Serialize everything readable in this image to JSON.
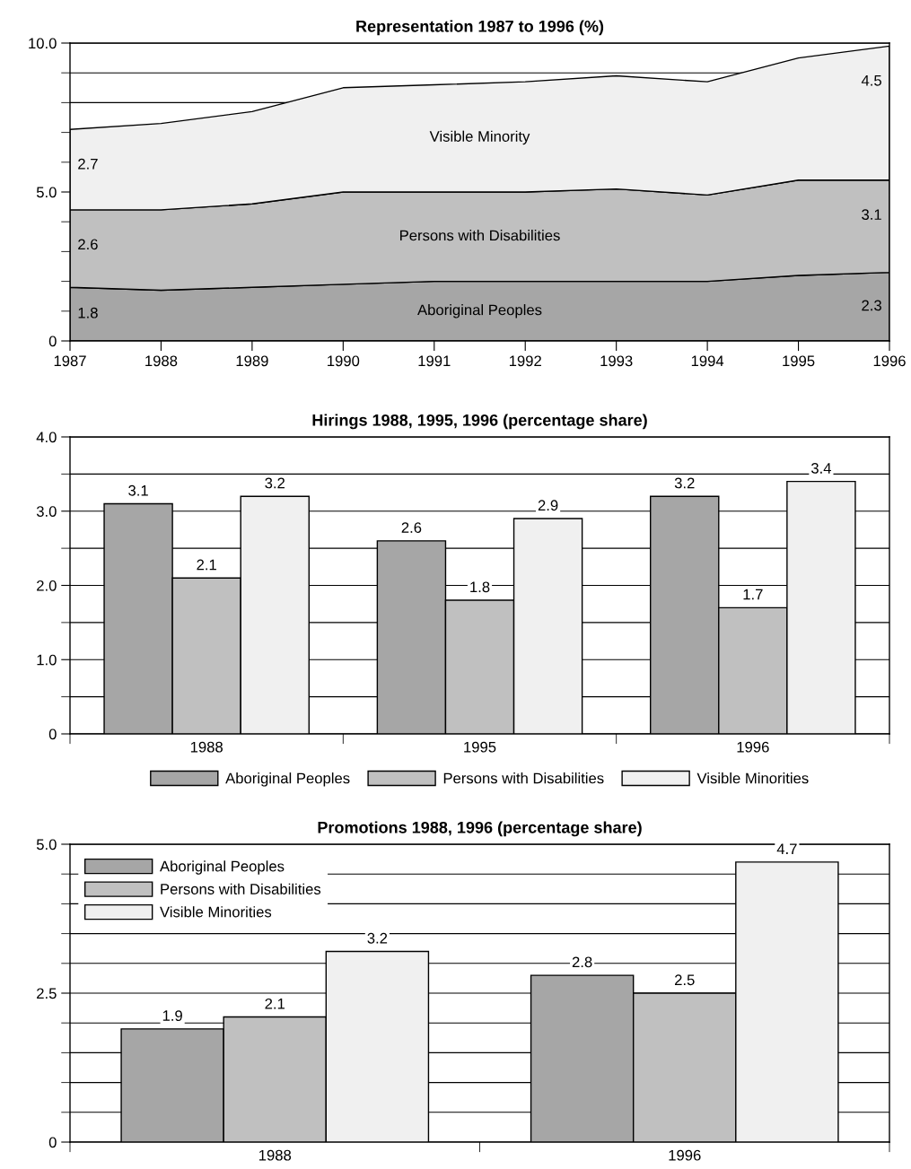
{
  "chart_data": [
    {
      "type": "area",
      "stacked": true,
      "title": "Representation 1987 to 1996 (%)",
      "x": [
        1987,
        1988,
        1989,
        1990,
        1991,
        1992,
        1993,
        1994,
        1995,
        1996
      ],
      "xlim": [
        1987,
        1996
      ],
      "xticks": [
        1987,
        1988,
        1989,
        1990,
        1991,
        1992,
        1993,
        1994,
        1995,
        1996
      ],
      "ylim": [
        0,
        10
      ],
      "yticks": [
        0,
        {
          "value": 1,
          "label": null
        },
        {
          "value": 2,
          "label": null
        },
        {
          "value": 3,
          "label": null
        },
        {
          "value": 4,
          "label": null
        },
        {
          "value": 5,
          "label": "5.0"
        },
        {
          "value": 6,
          "label": null
        },
        {
          "value": 7,
          "label": null
        },
        {
          "value": 8,
          "label": null
        },
        {
          "value": 9,
          "label": null
        },
        {
          "value": 10,
          "label": "10.0"
        }
      ],
      "grid": "y",
      "series": [
        {
          "name": "Aboriginal Peoples",
          "color": "#a6a6a6",
          "values": [
            1.8,
            1.7,
            1.8,
            1.9,
            2.0,
            2.0,
            2.0,
            2.0,
            2.2,
            2.3
          ],
          "value_labels": [
            "1.8",
            null,
            null,
            null,
            null,
            null,
            null,
            null,
            null,
            "2.3"
          ]
        },
        {
          "name": "Persons with Disabilities",
          "color": "#c0c0c0",
          "values": [
            2.6,
            2.7,
            2.8,
            3.1,
            3.0,
            3.0,
            3.1,
            2.9,
            3.2,
            3.1
          ],
          "value_labels": [
            "2.6",
            null,
            null,
            null,
            null,
            null,
            null,
            null,
            null,
            "3.1"
          ]
        },
        {
          "name": "Visible Minority",
          "color": "#f0f0f0",
          "values": [
            2.7,
            2.9,
            3.1,
            3.5,
            3.6,
            3.7,
            3.8,
            3.8,
            4.1,
            4.5
          ],
          "value_labels": [
            "2.7",
            null,
            null,
            null,
            null,
            null,
            null,
            null,
            null,
            "4.5"
          ]
        }
      ]
    },
    {
      "type": "bar",
      "title": "Hirings 1988, 1995, 1996 (percentage share)",
      "categories": [
        "1988",
        "1995",
        "1996"
      ],
      "ylim": [
        0,
        4
      ],
      "yticks": [
        0,
        {
          "value": 0.5,
          "label": null
        },
        {
          "value": 1,
          "label": "1.0"
        },
        {
          "value": 1.5,
          "label": null
        },
        {
          "value": 2,
          "label": "2.0"
        },
        {
          "value": 2.5,
          "label": null
        },
        {
          "value": 3,
          "label": "3.0"
        },
        {
          "value": 3.5,
          "label": null
        },
        {
          "value": 4,
          "label": "4.0"
        }
      ],
      "grid": "y",
      "legend": "bottom",
      "data_labels": true,
      "series": [
        {
          "name": "Aboriginal Peoples",
          "color": "#a6a6a6",
          "values": [
            3.1,
            2.6,
            3.2
          ]
        },
        {
          "name": "Persons with Disabilities",
          "color": "#c0c0c0",
          "values": [
            2.1,
            1.8,
            1.7
          ]
        },
        {
          "name": "Visible Minorities",
          "color": "#f0f0f0",
          "values": [
            3.2,
            2.9,
            3.4
          ]
        }
      ]
    },
    {
      "type": "bar",
      "title": "Promotions 1988, 1996 (percentage share)",
      "categories": [
        "1988",
        "1996"
      ],
      "ylim": [
        0,
        5
      ],
      "yticks": [
        0,
        {
          "value": 0.5,
          "label": null
        },
        {
          "value": 1,
          "label": null
        },
        {
          "value": 1.5,
          "label": null
        },
        {
          "value": 2,
          "label": null
        },
        2.5,
        {
          "value": 3,
          "label": null
        },
        {
          "value": 3.5,
          "label": null
        },
        {
          "value": 4,
          "label": null
        },
        {
          "value": 4.5,
          "label": null
        },
        {
          "value": 5,
          "label": "5.0"
        }
      ],
      "grid": "y",
      "legend": "top left",
      "data_labels": true,
      "series": [
        {
          "name": "Aboriginal Peoples",
          "color": "#a6a6a6",
          "values": [
            1.9,
            2.8
          ]
        },
        {
          "name": "Persons with Disabilities",
          "color": "#c0c0c0",
          "values": [
            2.1,
            2.5
          ]
        },
        {
          "name": "Visible Minorities",
          "color": "#f0f0f0",
          "values": [
            3.2,
            4.7
          ]
        }
      ]
    }
  ]
}
